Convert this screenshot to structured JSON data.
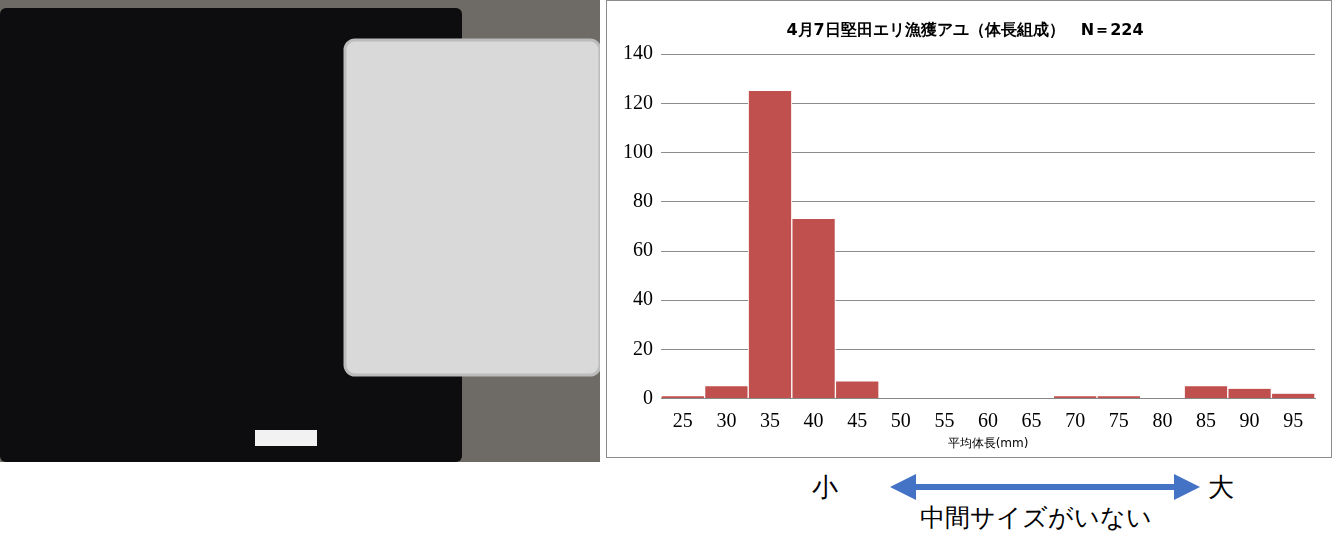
{
  "chart_data": {
    "type": "bar",
    "title": "4月7日堅田エリ漁獲アユ（体長組成）　N＝224",
    "x_label": "平均体長(mm)",
    "categories": [
      "25",
      "30",
      "35",
      "40",
      "45",
      "50",
      "55",
      "60",
      "65",
      "70",
      "75",
      "80",
      "85",
      "90",
      "95"
    ],
    "values": [
      1,
      5,
      125,
      73,
      7,
      0,
      0,
      0,
      0,
      1,
      1,
      0,
      5,
      4,
      2
    ],
    "color": "#c0504d",
    "ylim": [
      0,
      140
    ],
    "yticks": [
      0,
      20,
      40,
      60,
      80,
      100,
      120,
      140
    ],
    "grid": true,
    "annotations": {
      "small": "小",
      "large": "大",
      "caption": "中間サイズがいない"
    }
  }
}
